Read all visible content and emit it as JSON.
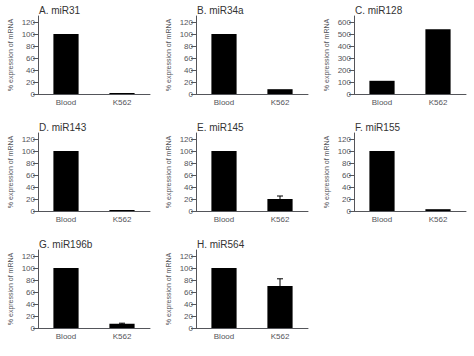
{
  "chart_data": [
    {
      "type": "bar",
      "title": "A. miR31",
      "categories": [
        "Blood",
        "K562"
      ],
      "values": [
        100,
        1.5
      ],
      "errors": [
        0,
        0
      ],
      "color": "#000000",
      "ylabel": "% expression of mRNA",
      "ylim": [
        0,
        130
      ],
      "yticks": [
        0,
        20,
        40,
        60,
        80,
        100,
        120
      ],
      "grid": false
    },
    {
      "type": "bar",
      "title": "B. miR34a",
      "categories": [
        "Blood",
        "K562"
      ],
      "values": [
        100,
        8
      ],
      "errors": [
        0,
        0
      ],
      "color": "#000000",
      "ylabel": "% expression of mRNA",
      "ylim": [
        0,
        130
      ],
      "yticks": [
        0,
        20,
        40,
        60,
        80,
        100,
        120
      ],
      "grid": false
    },
    {
      "type": "bar",
      "title": "C. miR128",
      "categories": [
        "Blood",
        "K562"
      ],
      "values": [
        110,
        540
      ],
      "errors": [
        0,
        0
      ],
      "color": "#000000",
      "ylabel": "% expression of mRNA",
      "ylim": [
        0,
        650
      ],
      "yticks": [
        0,
        100,
        200,
        300,
        400,
        500,
        600
      ],
      "grid": false
    },
    {
      "type": "bar",
      "title": "D. miR143",
      "categories": [
        "Blood",
        "K562"
      ],
      "values": [
        100,
        1.5
      ],
      "errors": [
        0,
        0
      ],
      "color": "#000000",
      "ylabel": "% expression of mRNA",
      "ylim": [
        0,
        130
      ],
      "yticks": [
        0,
        20,
        40,
        60,
        80,
        100,
        120
      ],
      "grid": false
    },
    {
      "type": "bar",
      "title": "E. miR145",
      "categories": [
        "Blood",
        "K562"
      ],
      "values": [
        100,
        20
      ],
      "errors": [
        0,
        5
      ],
      "color": "#000000",
      "ylabel": "% expression of mRNA",
      "ylim": [
        0,
        130
      ],
      "yticks": [
        0,
        20,
        40,
        60,
        80,
        100,
        120
      ],
      "grid": false
    },
    {
      "type": "bar",
      "title": "F. miR155",
      "categories": [
        "Blood",
        "K562"
      ],
      "values": [
        100,
        3
      ],
      "errors": [
        0,
        0
      ],
      "color": "#000000",
      "ylabel": "% expression of mRNA",
      "ylim": [
        0,
        130
      ],
      "yticks": [
        0,
        20,
        40,
        60,
        80,
        100,
        120
      ],
      "grid": false
    },
    {
      "type": "bar",
      "title": "G. miR196b",
      "categories": [
        "Blood",
        "K562"
      ],
      "values": [
        100,
        7
      ],
      "errors": [
        0,
        1
      ],
      "color": "#000000",
      "ylabel": "% expression of mRNA",
      "ylim": [
        0,
        130
      ],
      "yticks": [
        0,
        20,
        40,
        60,
        80,
        100,
        120
      ],
      "grid": false
    },
    {
      "type": "bar",
      "title": "H. miR564",
      "categories": [
        "Blood",
        "K562"
      ],
      "values": [
        100,
        70
      ],
      "errors": [
        0,
        12
      ],
      "color": "#000000",
      "ylabel": "% expression of mRNA",
      "ylim": [
        0,
        130
      ],
      "yticks": [
        0,
        20,
        40,
        60,
        80,
        100,
        120
      ],
      "grid": false
    }
  ]
}
